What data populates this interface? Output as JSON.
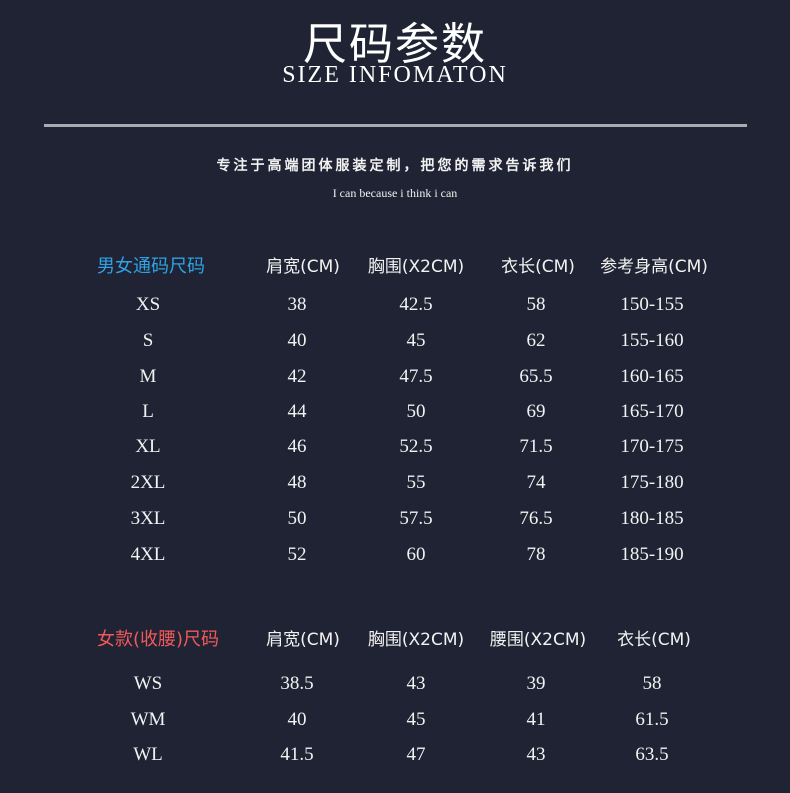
{
  "header": {
    "title": "尺码参数",
    "subtitle": "SIZE INFOMATON",
    "slogan": "专注于高端团体服装定制，把您的需求告诉我们",
    "motto": "I can because i think i can"
  },
  "colors": {
    "background": "#1f2333",
    "unisex_label": "#2fa3e6",
    "women_label": "#f05a5a",
    "divider": "#a9abb0"
  },
  "unisex_table": {
    "label": "男女通码尺码",
    "columns": [
      "肩宽(CM)",
      "胸围(X2CM)",
      "衣长(CM)",
      "参考身高(CM)"
    ],
    "rows": [
      [
        "XS",
        "38",
        "42.5",
        "58",
        "150-155"
      ],
      [
        "S",
        "40",
        "45",
        "62",
        "155-160"
      ],
      [
        "M",
        "42",
        "47.5",
        "65.5",
        "160-165"
      ],
      [
        "L",
        "44",
        "50",
        "69",
        "165-170"
      ],
      [
        "XL",
        "46",
        "52.5",
        "71.5",
        "170-175"
      ],
      [
        "2XL",
        "48",
        "55",
        "74",
        "175-180"
      ],
      [
        "3XL",
        "50",
        "57.5",
        "76.5",
        "180-185"
      ],
      [
        "4XL",
        "52",
        "60",
        "78",
        "185-190"
      ]
    ]
  },
  "women_table": {
    "label": "女款(收腰)尺码",
    "columns": [
      "肩宽(CM)",
      "胸围(X2CM)",
      "腰围(X2CM)",
      "衣长(CM)"
    ],
    "rows": [
      [
        "WS",
        "38.5",
        "43",
        "39",
        "58"
      ],
      [
        "WM",
        "40",
        "45",
        "41",
        "61.5"
      ],
      [
        "WL",
        "41.5",
        "47",
        "43",
        "63.5"
      ]
    ]
  }
}
